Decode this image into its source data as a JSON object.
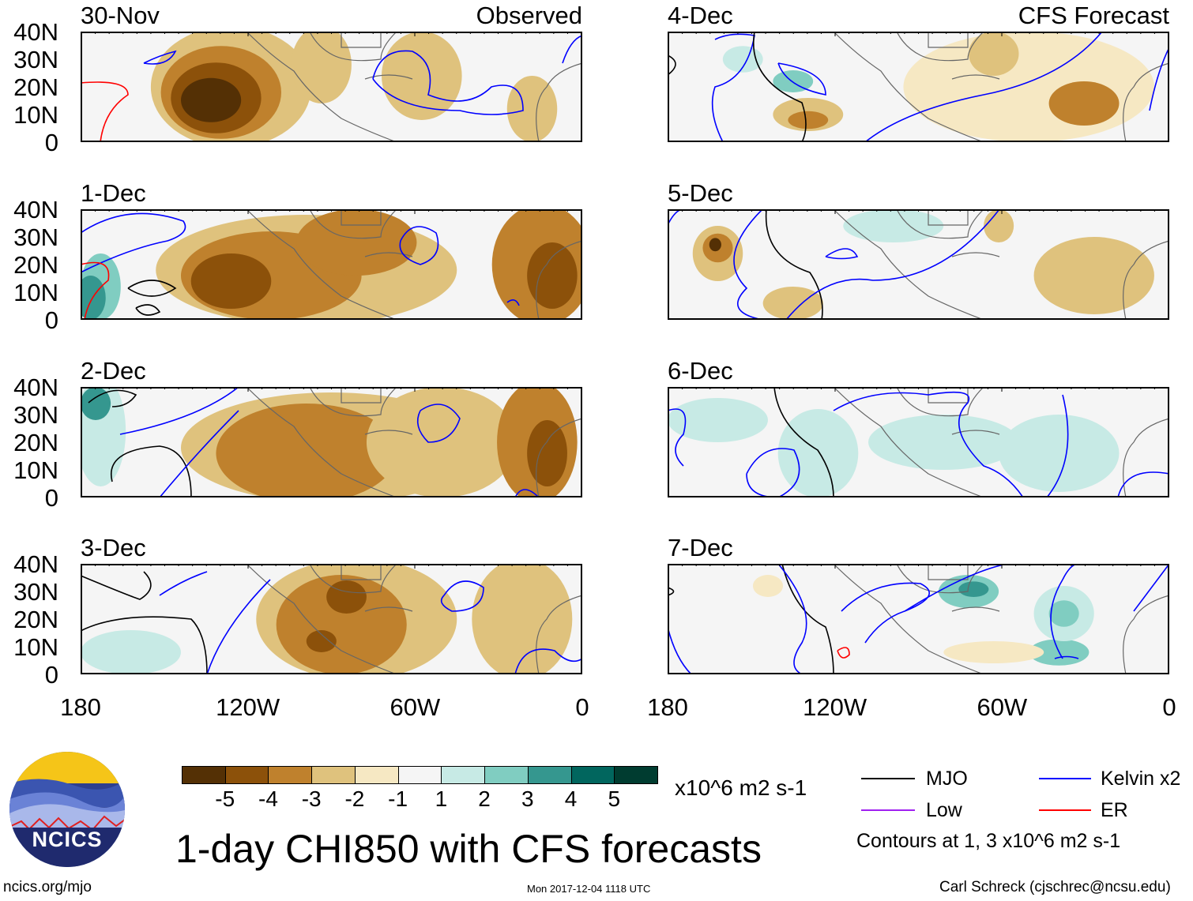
{
  "figure": {
    "title": "1-day CHI850 with CFS forecasts",
    "left_column_label": "Observed",
    "right_column_label": "CFS Forecast",
    "units": "x10^6 m2 s-1",
    "url": "ncics.org/mjo",
    "timestamp": "Mon 2017-12-04 1118 UTC",
    "author": "Carl Schreck (cjschrec@ncsu.edu)",
    "logo_text": "NCICS"
  },
  "panels": [
    {
      "date": "30-Nov",
      "type": "observed"
    },
    {
      "date": "1-Dec",
      "type": "observed"
    },
    {
      "date": "2-Dec",
      "type": "observed"
    },
    {
      "date": "3-Dec",
      "type": "observed"
    },
    {
      "date": "4-Dec",
      "type": "forecast"
    },
    {
      "date": "5-Dec",
      "type": "forecast"
    },
    {
      "date": "6-Dec",
      "type": "forecast"
    },
    {
      "date": "7-Dec",
      "type": "forecast"
    }
  ],
  "lat_labels": [
    "40N",
    "30N",
    "20N",
    "10N",
    "0"
  ],
  "lon_labels": [
    "180",
    "120W",
    "60W",
    "0"
  ],
  "colorbar": {
    "ticks": [
      "-5",
      "-4",
      "-3",
      "-2",
      "-1",
      "1",
      "2",
      "3",
      "4",
      "5"
    ],
    "colors": [
      "#543005",
      "#8c510a",
      "#bf812d",
      "#dfc27d",
      "#f6e8c3",
      "#f5f5f5",
      "#c7eae5",
      "#80cdc1",
      "#35978f",
      "#01665e",
      "#003c30"
    ]
  },
  "legend": {
    "items": [
      {
        "label": "MJO",
        "color": "#000000"
      },
      {
        "label": "Kelvin x2",
        "color": "#0000ff"
      },
      {
        "label": "Low",
        "color": "#a020f0"
      },
      {
        "label": "ER",
        "color": "#ff0000"
      }
    ],
    "note": "Contours at 1, 3 x10^6 m2 s-1"
  }
}
